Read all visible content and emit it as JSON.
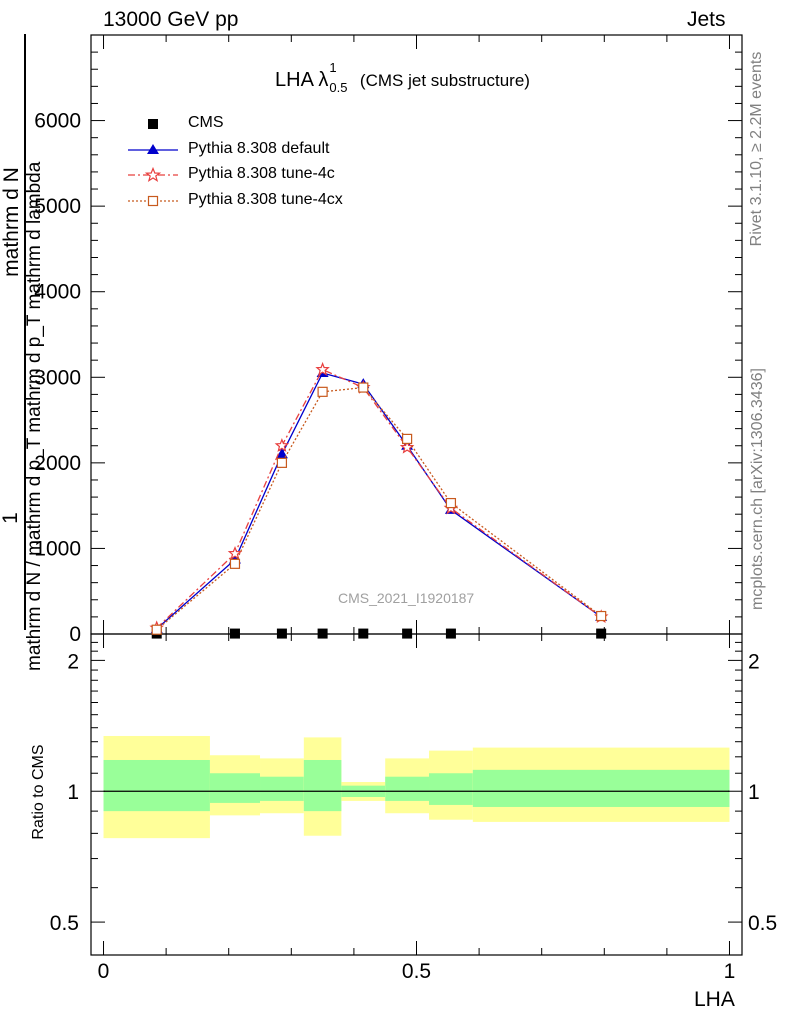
{
  "header": {
    "left": "13000 GeV pp",
    "right": "Jets"
  },
  "plot_title": {
    "main": "LHA λ",
    "sup": "1",
    "sub": "0.5",
    "tail": "(CMS jet substructure)"
  },
  "ylabel_main": {
    "numerator_one": "1",
    "fraction": "mathrm d N / mathrm d p_T mathrm d p_T mathrm d lambda",
    "leading": "mathrm d N",
    "p1": "mathrm d p",
    "p2": "mathrm d p",
    "lambda": "mathrm d lambda",
    "T": "T"
  },
  "ylabel_ratio": "Ratio to CMS",
  "xlabel": "LHA",
  "side_texts": {
    "rivet": "Rivet 3.1.10, ≥ 2.2M events",
    "mcplots": "mcplots.cern.ch [arXiv:1306.3436]"
  },
  "watermark": "CMS_2021_I1920187",
  "legend": [
    {
      "label": "CMS",
      "color": "#000000",
      "marker": "square-filled"
    },
    {
      "label": "Pythia 8.308 default",
      "color": "#0000cc",
      "marker": "triangle-filled",
      "line": "solid"
    },
    {
      "label": "Pythia 8.308 tune-4c",
      "color": "#e8403f",
      "marker": "star-open",
      "line": "dashdot"
    },
    {
      "label": "Pythia 8.308 tune-4cx",
      "color": "#c85a1e",
      "marker": "square-open",
      "line": "dotted"
    }
  ],
  "chart_data": {
    "type": "line",
    "xlabel": "LHA",
    "xlim": [
      -0.02,
      1.02
    ],
    "ylim_main": [
      0,
      7000
    ],
    "ylim_ratio": [
      0.42,
      2.3
    ],
    "y_ticks_main": [
      "0",
      "1000",
      "2000",
      "3000",
      "4000",
      "5000",
      "6000"
    ],
    "y_ticks_ratio": [
      "0.5",
      "1",
      "2"
    ],
    "x_ticks": [
      "0",
      "0.5",
      "1"
    ],
    "bins": [
      {
        "lo": 0.0,
        "hi": 0.17
      },
      {
        "lo": 0.17,
        "hi": 0.25
      },
      {
        "lo": 0.25,
        "hi": 0.32
      },
      {
        "lo": 0.32,
        "hi": 0.38
      },
      {
        "lo": 0.38,
        "hi": 0.45
      },
      {
        "lo": 0.45,
        "hi": 0.52
      },
      {
        "lo": 0.52,
        "hi": 0.59
      },
      {
        "lo": 0.59,
        "hi": 1.0
      }
    ],
    "x": [
      0.085,
      0.21,
      0.285,
      0.35,
      0.415,
      0.485,
      0.555,
      0.795
    ],
    "series": [
      {
        "name": "CMS",
        "values": [
          5,
          5,
          5,
          5,
          5,
          5,
          5,
          5
        ]
      },
      {
        "name": "Pythia 8.308 default",
        "values": [
          60,
          870,
          2100,
          3050,
          2920,
          2200,
          1450,
          200
        ]
      },
      {
        "name": "Pythia 8.308 tune-4c",
        "values": [
          70,
          940,
          2200,
          3090,
          2880,
          2180,
          1470,
          200
        ]
      },
      {
        "name": "Pythia 8.308 tune-4cx",
        "values": [
          50,
          820,
          2000,
          2830,
          2880,
          2280,
          1530,
          210
        ]
      }
    ],
    "ratio_band_inner": [
      {
        "lo": 0.9,
        "hi": 1.18
      },
      {
        "lo": 0.94,
        "hi": 1.1
      },
      {
        "lo": 0.95,
        "hi": 1.08
      },
      {
        "lo": 0.9,
        "hi": 1.18
      },
      {
        "lo": 0.97,
        "hi": 1.03
      },
      {
        "lo": 0.95,
        "hi": 1.08
      },
      {
        "lo": 0.93,
        "hi": 1.1
      },
      {
        "lo": 0.92,
        "hi": 1.12
      }
    ],
    "ratio_band_outer": [
      {
        "lo": 0.78,
        "hi": 1.34
      },
      {
        "lo": 0.88,
        "hi": 1.21
      },
      {
        "lo": 0.89,
        "hi": 1.19
      },
      {
        "lo": 0.79,
        "hi": 1.33
      },
      {
        "lo": 0.95,
        "hi": 1.05
      },
      {
        "lo": 0.89,
        "hi": 1.19
      },
      {
        "lo": 0.86,
        "hi": 1.24
      },
      {
        "lo": 0.85,
        "hi": 1.26
      }
    ],
    "colors": {
      "band_inner": "#99ff99",
      "band_outer": "#ffff99"
    }
  }
}
